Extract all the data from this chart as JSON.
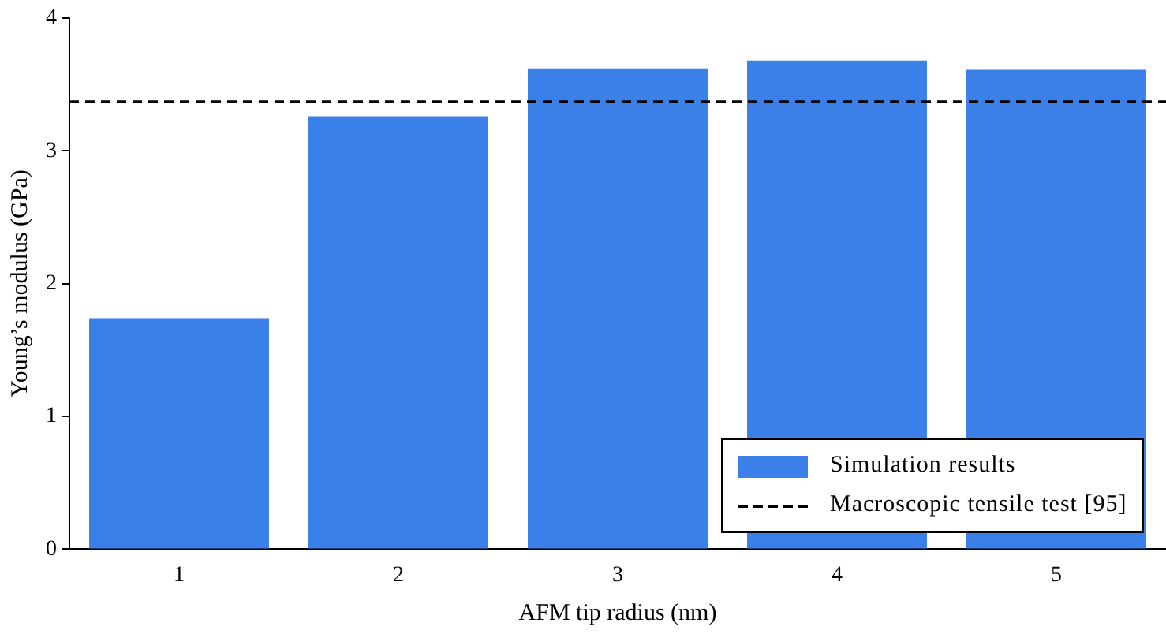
{
  "chart_data": {
    "type": "bar",
    "xlabel": "AFM tip radius (nm)",
    "ylabel": "Young’s modulus (GPa)",
    "categories": [
      "1",
      "2",
      "3",
      "4",
      "5"
    ],
    "series": [
      {
        "name": "Simulation results",
        "color": "#3b80e8",
        "values": [
          1.74,
          3.26,
          3.62,
          3.68,
          3.61
        ]
      }
    ],
    "ylim": [
      0,
      4
    ],
    "yticks": [
      0,
      1,
      2,
      3,
      4
    ],
    "grid": false,
    "legend": "bottom right",
    "ref_lines": [
      {
        "axis": "y",
        "value": 3.37,
        "label": "Macroscopic tensile test [95]",
        "color": "#000000",
        "line_style": "dashed"
      }
    ]
  }
}
